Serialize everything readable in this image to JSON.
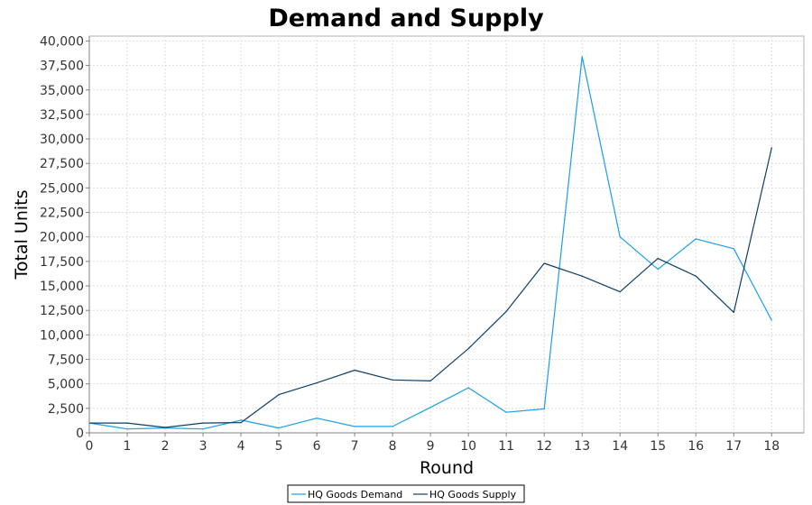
{
  "chart_data": {
    "type": "line",
    "title": "Demand and Supply",
    "xlabel": "Round",
    "ylabel": "Total Units",
    "xlim": [
      0,
      18.85
    ],
    "ylim": [
      0,
      40500
    ],
    "x_ticks": [
      0,
      1,
      2,
      3,
      4,
      5,
      6,
      7,
      8,
      9,
      10,
      11,
      12,
      13,
      14,
      15,
      16,
      17,
      18
    ],
    "y_ticks": [
      0,
      2500,
      5000,
      7500,
      10000,
      12500,
      15000,
      17500,
      20000,
      22500,
      25000,
      27500,
      30000,
      32500,
      35000,
      37500,
      40000
    ],
    "y_tick_labels": [
      "0",
      "2,500",
      "5,000",
      "7,500",
      "10,000",
      "12,500",
      "15,000",
      "17,500",
      "20,000",
      "22,500",
      "25,000",
      "27,500",
      "30,000",
      "32,500",
      "35,000",
      "37,500",
      "40,000"
    ],
    "grid": true,
    "legend_position": "bottom",
    "x": [
      0,
      1,
      2,
      3,
      4,
      5,
      6,
      7,
      8,
      9,
      10,
      11,
      12,
      13,
      14,
      15,
      16,
      17,
      18
    ],
    "series": [
      {
        "name": "HQ Goods Demand",
        "color": "#1a9ee6",
        "values": [
          1000,
          400,
          500,
          400,
          1300,
          500,
          1500,
          650,
          650,
          2600,
          4600,
          2100,
          2450,
          38400,
          20000,
          16700,
          19800,
          18800,
          11500
        ]
      },
      {
        "name": "HQ Goods Supply",
        "color": "#0d3f66",
        "values": [
          1000,
          1000,
          550,
          1000,
          1050,
          3900,
          5100,
          6400,
          5400,
          5300,
          8600,
          12400,
          17300,
          16000,
          14400,
          17800,
          16000,
          12300,
          29100
        ]
      }
    ]
  }
}
